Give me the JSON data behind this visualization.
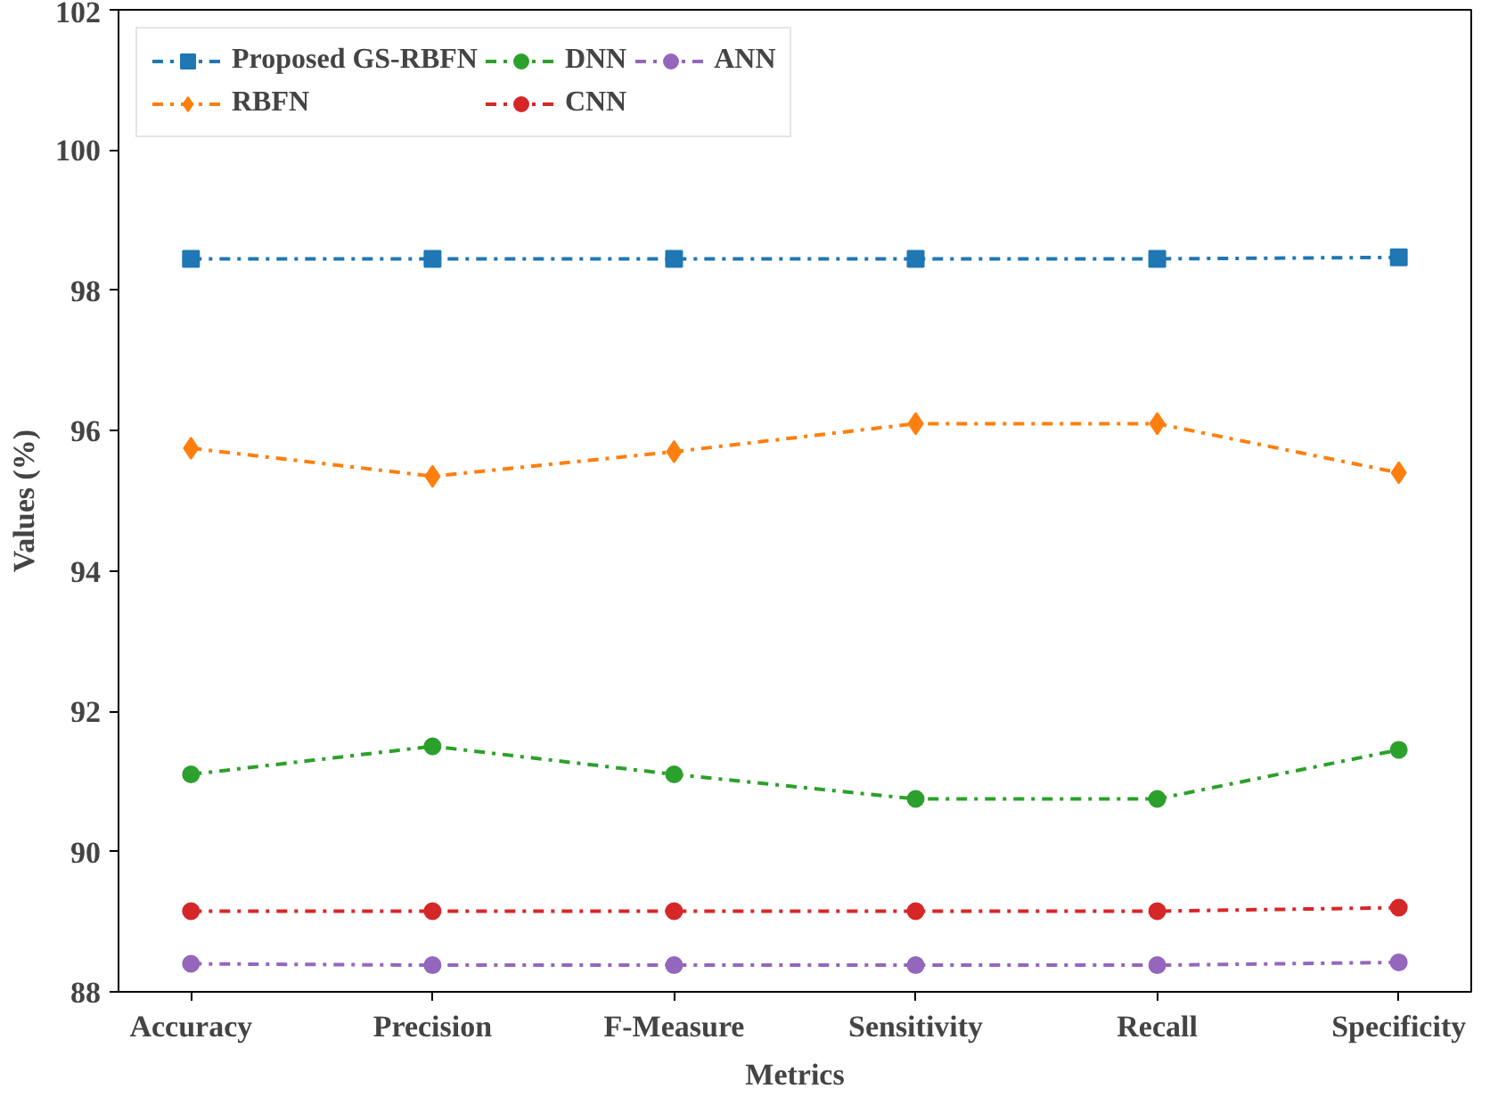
{
  "chart_data": {
    "type": "line",
    "xlabel": "Metrics",
    "ylabel": "Values (%)",
    "categories": [
      "Accuracy",
      "Precision",
      "F-Measure",
      "Sensitivity",
      "Recall",
      "Specificity"
    ],
    "ylim": [
      88,
      102
    ],
    "yticks": [
      88,
      90,
      92,
      94,
      96,
      98,
      100,
      102
    ],
    "grid": false,
    "legend": "top left",
    "line_style": "dashdot",
    "series": [
      {
        "name": "Proposed GS-RBFN",
        "color": "#1f77b4",
        "marker": "square",
        "values": [
          98.45,
          98.45,
          98.45,
          98.45,
          98.45,
          98.47
        ]
      },
      {
        "name": "RBFN",
        "color": "#ff7f0e",
        "marker": "diamond",
        "values": [
          95.75,
          95.35,
          95.7,
          96.1,
          96.1,
          95.4
        ]
      },
      {
        "name": "DNN",
        "color": "#2ca02c",
        "marker": "circle",
        "values": [
          91.1,
          91.5,
          91.1,
          90.75,
          90.75,
          91.45
        ]
      },
      {
        "name": "CNN",
        "color": "#d62728",
        "marker": "circle",
        "values": [
          89.15,
          89.15,
          89.15,
          89.15,
          89.15,
          89.2
        ]
      },
      {
        "name": "ANN",
        "color": "#9467bd",
        "marker": "circle",
        "values": [
          88.4,
          88.38,
          88.38,
          88.38,
          88.38,
          88.42
        ]
      }
    ]
  }
}
